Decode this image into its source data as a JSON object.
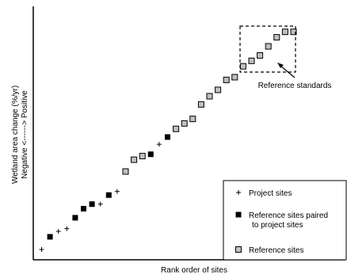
{
  "chart_data": {
    "type": "scatter",
    "title": "",
    "xlabel": "Rank order of sites",
    "ylabel_line1": "Wetland area change (%/yr)",
    "ylabel_line2": "Negative <------> Positive",
    "grid": false,
    "legend_position": "bottom-right",
    "series": [
      {
        "name": "Project sites",
        "marker": "plus",
        "x": [
          1,
          3,
          4,
          8,
          10,
          15
        ],
        "y": [
          1.0,
          3.0,
          3.3,
          6.0,
          7.4,
          12.6
        ]
      },
      {
        "name": "Reference sites paired to project sites",
        "marker": "filled-square",
        "x": [
          2,
          5,
          6,
          7,
          9,
          14,
          16
        ],
        "y": [
          2.4,
          4.5,
          5.5,
          6.0,
          7.0,
          11.5,
          13.4
        ]
      },
      {
        "name": "Reference sites",
        "marker": "open-square",
        "x": [
          11,
          12,
          13,
          17,
          18,
          19,
          20,
          21,
          22,
          23,
          24,
          25,
          26,
          27,
          28,
          29,
          30,
          31
        ],
        "y": [
          9.6,
          10.9,
          11.3,
          14.3,
          14.9,
          15.4,
          17.0,
          17.9,
          18.6,
          19.7,
          20.0,
          21.2,
          21.8,
          22.4,
          23.4,
          24.4,
          25.0,
          25.0
        ]
      }
    ],
    "annotation": {
      "text": "Reference standards",
      "box_from_x": 26,
      "box_to_x": 31
    }
  }
}
